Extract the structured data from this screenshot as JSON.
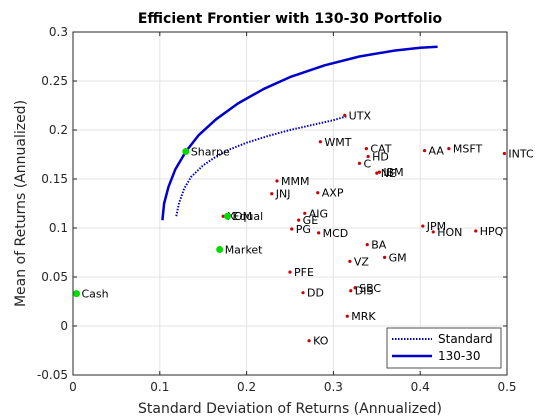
{
  "chart_data": {
    "type": "scatter",
    "title": "Efficient Frontier with 130-30 Portfolio",
    "xlabel": "Standard Deviation of Returns (Annualized)",
    "ylabel": "Mean of Returns (Annualized)",
    "xlim": [
      0,
      0.5
    ],
    "ylim": [
      -0.05,
      0.3
    ],
    "x_ticks": [
      "0",
      "0.1",
      "0.2",
      "0.3",
      "0.4",
      "0.5"
    ],
    "y_ticks": [
      "-0.05",
      "0",
      "0.05",
      "0.1",
      "0.15",
      "0.2",
      "0.25",
      "0.3"
    ],
    "grid": true,
    "legend_position": "bottom-right",
    "colors": {
      "frontier": "#0000cc",
      "stock": "#cc0000",
      "special": "#00dd00"
    },
    "series": [
      {
        "name": "Standard",
        "style": "dotted",
        "x": [
          0.119,
          0.122,
          0.128,
          0.136,
          0.15,
          0.165,
          0.18,
          0.2,
          0.225,
          0.25,
          0.275,
          0.3,
          0.315
        ],
        "y": [
          0.112,
          0.125,
          0.14,
          0.152,
          0.164,
          0.173,
          0.18,
          0.187,
          0.194,
          0.2,
          0.205,
          0.21,
          0.214
        ]
      },
      {
        "name": "130-30",
        "style": "solid",
        "x": [
          0.103,
          0.105,
          0.11,
          0.118,
          0.13,
          0.145,
          0.165,
          0.19,
          0.22,
          0.25,
          0.29,
          0.33,
          0.37,
          0.4,
          0.42
        ],
        "y": [
          0.108,
          0.125,
          0.142,
          0.16,
          0.178,
          0.195,
          0.211,
          0.227,
          0.242,
          0.254,
          0.266,
          0.275,
          0.281,
          0.284,
          0.285
        ]
      }
    ],
    "points": [
      {
        "label": "UTX",
        "x": 0.313,
        "y": 0.215,
        "kind": "stock"
      },
      {
        "label": "WMT",
        "x": 0.285,
        "y": 0.188,
        "kind": "stock"
      },
      {
        "label": "CAT",
        "x": 0.338,
        "y": 0.181,
        "kind": "stock"
      },
      {
        "label": "HD",
        "x": 0.34,
        "y": 0.173,
        "kind": "stock"
      },
      {
        "label": "C",
        "x": 0.33,
        "y": 0.166,
        "kind": "stock"
      },
      {
        "label": "NE",
        "x": 0.35,
        "y": 0.156,
        "kind": "stock"
      },
      {
        "label": "IBM",
        "x": 0.353,
        "y": 0.157,
        "kind": "stock"
      },
      {
        "label": "AA",
        "x": 0.405,
        "y": 0.179,
        "kind": "stock"
      },
      {
        "label": "MSFT",
        "x": 0.433,
        "y": 0.181,
        "kind": "stock"
      },
      {
        "label": "INTC",
        "x": 0.497,
        "y": 0.176,
        "kind": "stock"
      },
      {
        "label": "MMM",
        "x": 0.235,
        "y": 0.148,
        "kind": "stock"
      },
      {
        "label": "JNJ",
        "x": 0.229,
        "y": 0.135,
        "kind": "stock"
      },
      {
        "label": "AXP",
        "x": 0.282,
        "y": 0.136,
        "kind": "stock"
      },
      {
        "label": "AIG",
        "x": 0.267,
        "y": 0.115,
        "kind": "stock"
      },
      {
        "label": "GE",
        "x": 0.26,
        "y": 0.108,
        "kind": "stock"
      },
      {
        "label": "PG",
        "x": 0.252,
        "y": 0.099,
        "kind": "stock"
      },
      {
        "label": "MCD",
        "x": 0.283,
        "y": 0.095,
        "kind": "stock"
      },
      {
        "label": "XOM",
        "x": 0.173,
        "y": 0.112,
        "kind": "stock"
      },
      {
        "label": "JPM",
        "x": 0.403,
        "y": 0.102,
        "kind": "stock"
      },
      {
        "label": "HON",
        "x": 0.415,
        "y": 0.096,
        "kind": "stock"
      },
      {
        "label": "HPQ",
        "x": 0.464,
        "y": 0.097,
        "kind": "stock"
      },
      {
        "label": "BA",
        "x": 0.339,
        "y": 0.083,
        "kind": "stock"
      },
      {
        "label": "GM",
        "x": 0.359,
        "y": 0.07,
        "kind": "stock"
      },
      {
        "label": "VZ",
        "x": 0.319,
        "y": 0.066,
        "kind": "stock"
      },
      {
        "label": "PFE",
        "x": 0.25,
        "y": 0.055,
        "kind": "stock"
      },
      {
        "label": "SBC",
        "x": 0.325,
        "y": 0.039,
        "kind": "stock"
      },
      {
        "label": "DIS",
        "x": 0.32,
        "y": 0.036,
        "kind": "stock"
      },
      {
        "label": "DD",
        "x": 0.265,
        "y": 0.034,
        "kind": "stock"
      },
      {
        "label": "MRK",
        "x": 0.316,
        "y": 0.01,
        "kind": "stock"
      },
      {
        "label": "KO",
        "x": 0.272,
        "y": -0.015,
        "kind": "stock"
      },
      {
        "label": "Sharpe",
        "x": 0.13,
        "y": 0.178,
        "kind": "special"
      },
      {
        "label": "Equal",
        "x": 0.178,
        "y": 0.112,
        "kind": "special"
      },
      {
        "label": "Market",
        "x": 0.169,
        "y": 0.078,
        "kind": "special"
      },
      {
        "label": "Cash",
        "x": 0.004,
        "y": 0.033,
        "kind": "special"
      }
    ]
  }
}
